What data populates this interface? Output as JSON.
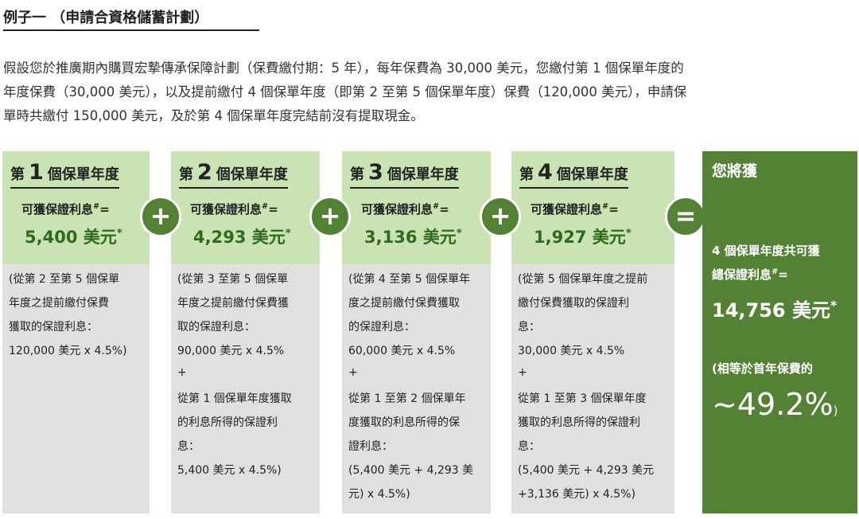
{
  "title": "例子一 （申請合資格儲蓄計劃）",
  "paragraph": [
    "假設您於推廣期內購買宏摯傳承保障計劃（保費繳付期：5 年），每年保費為 30,000 美元，您繳付第 1 個保單年度的",
    "年度保費（30,000 美元），以及提前繳付 4 個保單年度（即第 2 至第 5 個保單年度）保費（120,000 美元），申請保",
    "單時共繳付 150,000 美元，及於第 4 個保單年度完結前沒有提取現金。"
  ],
  "columns": [
    {
      "prefix": "第",
      "number": "1",
      "suffix": "個保單年度",
      "interest_label": "可獲保證利息",
      "interest_mark": "#",
      "equals": "=",
      "amount": "5,400 美元",
      "amount_mark": "*",
      "details": [
        "(從第 2 至第 5 個保單",
        "年度之提前繳付保費",
        "獲取的保證利息：",
        "120,000 美元 x 4.5%)"
      ]
    },
    {
      "prefix": "第",
      "number": "2",
      "suffix": "個保單年度",
      "interest_label": "可獲保證利息",
      "interest_mark": "#",
      "equals": "=",
      "amount": "4,293 美元",
      "amount_mark": "*",
      "details": [
        "(從第 3 至第 5 個保單",
        "年度之提前繳付保費獲",
        "取的保證利息：",
        "90,000 美元 x 4.5%",
        "+",
        "從第 1 個保單年度獲取",
        "的利息所得的保證利",
        "息：",
        "5,400 美元 x 4.5%)"
      ]
    },
    {
      "prefix": "第",
      "number": "3",
      "suffix": "個保單年度",
      "interest_label": "可獲保證利息",
      "interest_mark": "#",
      "equals": "=",
      "amount": "3,136 美元",
      "amount_mark": "*",
      "details": [
        "(從第 4 至第 5 個保單年",
        "度之提前繳付保費獲取",
        "的保證利息：",
        "60,000 美元 x 4.5%",
        "+",
        "從第 1 至第 2 個保單年",
        "度獲取的利息所得的保",
        "證利息：",
        "(5,400 美元 + 4,293 美",
        "元) x 4.5%)"
      ]
    },
    {
      "prefix": "第",
      "number": "4",
      "suffix": "個保單年度",
      "interest_label": "可獲保證利息",
      "interest_mark": "#",
      "equals": "=",
      "amount": "1,927 美元",
      "amount_mark": "*",
      "details": [
        "(從第 5 個保單年度之提前",
        "繳付保費獲取的保證利",
        "息：",
        "30,000 美元 x 4.5%",
        "+",
        "從第 1 至第 3 個保單年度",
        "獲取的利息所得的保證利",
        "息：",
        "(5,400 美元 + 4,293 美元",
        "+3,136 美元) x 4.5%)"
      ]
    }
  ],
  "operators": [
    "+",
    "+",
    "+",
    "="
  ],
  "result": {
    "heading": "您將獲",
    "line1": "4 個保單年度共可獲",
    "label": "總保證利息",
    "label_mark": "#",
    "equals": "=",
    "amount": "14,756 美元",
    "amount_mark": "*",
    "note": "(相等於首年保費的",
    "percent": "~49.2%",
    "close": ")"
  }
}
